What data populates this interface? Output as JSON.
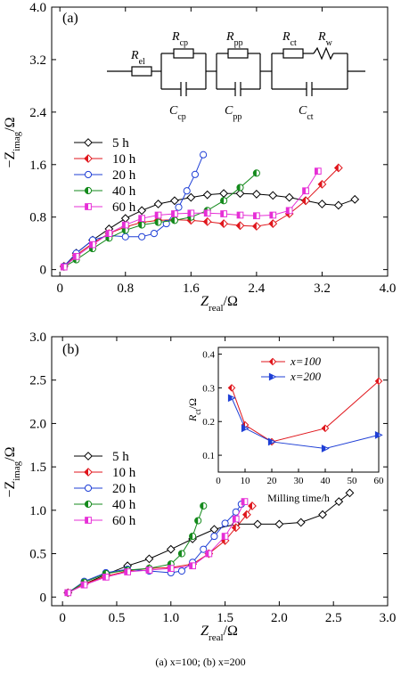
{
  "caption": "(a) x=100; (b) x=200",
  "colors": {
    "5 h": "#000000",
    "10 h": "#e0161c",
    "20 h": "#1f3fd6",
    "40 h": "#148a1c",
    "60 h": "#e62fd6"
  },
  "chart_data": [
    {
      "type": "scatter",
      "panel_label": "(a)",
      "xlabel": "Z_real/Ω",
      "ylabel": "−Z_imag/Ω",
      "xlim": [
        -0.1,
        4.0
      ],
      "ylim": [
        -0.1,
        4.0
      ],
      "xticks": [
        0,
        0.8,
        1.6,
        2.4,
        3.2,
        4.0
      ],
      "yticks": [
        0,
        0.8,
        1.6,
        2.4,
        3.2,
        4.0
      ],
      "circuit": {
        "elements": [
          "R_el",
          "R_cp",
          "C_cp",
          "R_pp",
          "C_pp",
          "R_ct",
          "R_w",
          "C_ct"
        ]
      },
      "series": [
        {
          "name": "5 h",
          "marker": "diamond",
          "x": [
            0.05,
            0.2,
            0.4,
            0.6,
            0.8,
            1.0,
            1.2,
            1.4,
            1.6,
            1.8,
            2.0,
            2.2,
            2.4,
            2.6,
            2.8,
            3.0,
            3.2,
            3.4,
            3.6
          ],
          "y": [
            0.05,
            0.25,
            0.45,
            0.62,
            0.78,
            0.9,
            1.0,
            1.05,
            1.1,
            1.14,
            1.16,
            1.16,
            1.15,
            1.13,
            1.1,
            1.05,
            1.0,
            0.98,
            1.07
          ]
        },
        {
          "name": "10 h",
          "marker": "diamond-half",
          "x": [
            0.05,
            0.2,
            0.4,
            0.6,
            0.8,
            1.0,
            1.2,
            1.4,
            1.6,
            1.8,
            2.0,
            2.2,
            2.4,
            2.6,
            2.8,
            3.0,
            3.2,
            3.4
          ],
          "y": [
            0.05,
            0.22,
            0.4,
            0.55,
            0.65,
            0.72,
            0.75,
            0.76,
            0.75,
            0.73,
            0.7,
            0.67,
            0.66,
            0.7,
            0.85,
            1.05,
            1.3,
            1.55
          ]
        },
        {
          "name": "20 h",
          "marker": "circle",
          "x": [
            0.05,
            0.2,
            0.4,
            0.6,
            0.8,
            1.0,
            1.15,
            1.3,
            1.45,
            1.55,
            1.65,
            1.75
          ],
          "y": [
            0.05,
            0.25,
            0.45,
            0.52,
            0.5,
            0.5,
            0.55,
            0.7,
            0.95,
            1.2,
            1.45,
            1.75
          ]
        },
        {
          "name": "40 h",
          "marker": "circle-half",
          "x": [
            0.05,
            0.2,
            0.4,
            0.6,
            0.8,
            1.0,
            1.2,
            1.4,
            1.6,
            1.8,
            2.0,
            2.2,
            2.4
          ],
          "y": [
            0.04,
            0.15,
            0.32,
            0.48,
            0.6,
            0.68,
            0.72,
            0.75,
            0.8,
            0.9,
            1.05,
            1.25,
            1.47
          ]
        },
        {
          "name": "60 h",
          "marker": "square-half",
          "x": [
            0.05,
            0.2,
            0.4,
            0.6,
            0.8,
            1.0,
            1.2,
            1.4,
            1.6,
            1.8,
            2.0,
            2.2,
            2.4,
            2.6,
            2.8,
            3.0,
            3.15
          ],
          "y": [
            0.04,
            0.2,
            0.38,
            0.55,
            0.68,
            0.78,
            0.83,
            0.85,
            0.86,
            0.86,
            0.85,
            0.83,
            0.82,
            0.83,
            0.9,
            1.2,
            1.5
          ]
        }
      ]
    },
    {
      "type": "scatter",
      "panel_label": "(b)",
      "xlabel": "Z_real/Ω",
      "ylabel": "−Z_imag/Ω",
      "xlim": [
        -0.1,
        3.0
      ],
      "ylim": [
        -0.1,
        3.0
      ],
      "xticks": [
        0,
        0.5,
        1.0,
        1.5,
        2.0,
        2.5,
        3.0
      ],
      "yticks": [
        0,
        0.5,
        1.0,
        1.5,
        2.0,
        2.5,
        3.0
      ],
      "series": [
        {
          "name": "5 h",
          "marker": "diamond",
          "x": [
            0.05,
            0.2,
            0.4,
            0.6,
            0.8,
            1.0,
            1.2,
            1.4,
            1.6,
            1.8,
            2.0,
            2.2,
            2.4,
            2.55,
            2.65
          ],
          "y": [
            0.05,
            0.15,
            0.26,
            0.36,
            0.44,
            0.55,
            0.67,
            0.78,
            0.84,
            0.84,
            0.84,
            0.86,
            0.95,
            1.1,
            1.2
          ]
        },
        {
          "name": "10 h",
          "marker": "diamond-half",
          "x": [
            0.05,
            0.2,
            0.4,
            0.6,
            0.8,
            1.0,
            1.2,
            1.35,
            1.5,
            1.6,
            1.7,
            1.75
          ],
          "y": [
            0.05,
            0.15,
            0.24,
            0.3,
            0.33,
            0.34,
            0.38,
            0.5,
            0.65,
            0.8,
            0.95,
            1.05
          ]
        },
        {
          "name": "20 h",
          "marker": "circle",
          "x": [
            0.05,
            0.2,
            0.4,
            0.6,
            0.8,
            1.0,
            1.1,
            1.2,
            1.3,
            1.4,
            1.5,
            1.6,
            1.65
          ],
          "y": [
            0.05,
            0.18,
            0.28,
            0.32,
            0.3,
            0.28,
            0.3,
            0.4,
            0.55,
            0.7,
            0.85,
            0.98,
            1.07
          ]
        },
        {
          "name": "40 h",
          "marker": "circle-half",
          "x": [
            0.05,
            0.2,
            0.4,
            0.6,
            0.8,
            1.0,
            1.1,
            1.2,
            1.25,
            1.3
          ],
          "y": [
            0.05,
            0.17,
            0.27,
            0.31,
            0.33,
            0.38,
            0.5,
            0.7,
            0.88,
            1.05
          ]
        },
        {
          "name": "60 h",
          "marker": "square-half",
          "x": [
            0.05,
            0.2,
            0.4,
            0.6,
            0.8,
            1.0,
            1.2,
            1.35,
            1.5,
            1.6,
            1.68
          ],
          "y": [
            0.05,
            0.14,
            0.23,
            0.29,
            0.31,
            0.33,
            0.36,
            0.5,
            0.7,
            0.9,
            1.1
          ]
        }
      ],
      "inset": {
        "type": "line",
        "xlabel": "Milling time/h",
        "ylabel": "R_ct/Ω",
        "xlim": [
          0,
          60
        ],
        "ylim": [
          0.05,
          0.42
        ],
        "xticks": [
          0,
          10,
          20,
          30,
          40,
          50,
          60
        ],
        "yticks": [
          0.1,
          0.2,
          0.3,
          0.4
        ],
        "series": [
          {
            "name": "x=100",
            "marker": "diamond-half",
            "color": "#e0161c",
            "x": [
              5,
              10,
              20,
              40,
              60
            ],
            "y": [
              0.3,
              0.19,
              0.14,
              0.18,
              0.32
            ]
          },
          {
            "name": "x=200",
            "marker": "triangle-right",
            "color": "#1f3fd6",
            "x": [
              5,
              10,
              20,
              40,
              60
            ],
            "y": [
              0.27,
              0.18,
              0.14,
              0.12,
              0.16
            ]
          }
        ]
      }
    }
  ]
}
